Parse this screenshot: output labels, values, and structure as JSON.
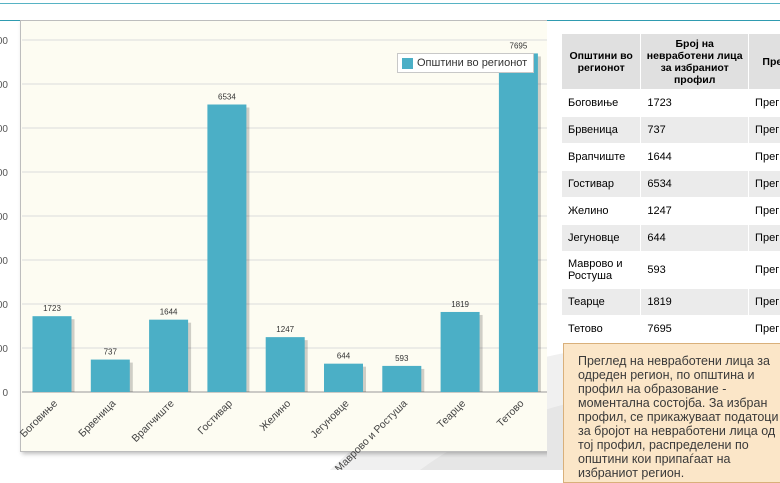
{
  "legend": {
    "label": "Општини во регионот",
    "color": "#4bafc6"
  },
  "table": {
    "headers": [
      "Општини во регионот",
      "Број на невработени лица за избраниот профил",
      "Прег"
    ],
    "rows": [
      {
        "name": "Боговиње",
        "count": "1723",
        "link": "Прег"
      },
      {
        "name": "Брвеница",
        "count": "737",
        "link": "Прег"
      },
      {
        "name": "Врапчиште",
        "count": "1644",
        "link": "Прег"
      },
      {
        "name": "Гостивар",
        "count": "6534",
        "link": "Прег"
      },
      {
        "name": "Желино",
        "count": "1247",
        "link": "Прег"
      },
      {
        "name": "Јегуновце",
        "count": "644",
        "link": "Прег"
      },
      {
        "name": "Маврово и Ростуша",
        "count": "593",
        "link": "Прег"
      },
      {
        "name": "Теарце",
        "count": "1819",
        "link": "Прег"
      },
      {
        "name": "Тетово",
        "count": "7695",
        "link": "Прег"
      }
    ]
  },
  "info_text": "Преглед на невработени лица за одреден регион, по општина и профил на образование - моментална состојба. За избран профил, се прикажуваат податоци за бројот на невработени лица од тој профил, распределени по општини кои припаѓаат на избраниот регион.",
  "chart_data": {
    "type": "bar",
    "categories": [
      "Боговиње",
      "Брвеница",
      "Врапчиште",
      "Гостивар",
      "Желино",
      "Јегуновце",
      "Маврово и Ростуша",
      "Теарце",
      "Тетово"
    ],
    "series": [
      {
        "name": "Општини во регионот",
        "values": [
          1723,
          737,
          1644,
          6534,
          1247,
          644,
          593,
          1819,
          7695
        ]
      }
    ],
    "ylim": [
      0,
      8000
    ],
    "ytick_labels": [
      "0",
      "000",
      "000",
      "000",
      "000",
      "000",
      "000",
      "000",
      "000"
    ],
    "grid": true,
    "legend_position": "top-right",
    "color": "#4bafc6"
  }
}
